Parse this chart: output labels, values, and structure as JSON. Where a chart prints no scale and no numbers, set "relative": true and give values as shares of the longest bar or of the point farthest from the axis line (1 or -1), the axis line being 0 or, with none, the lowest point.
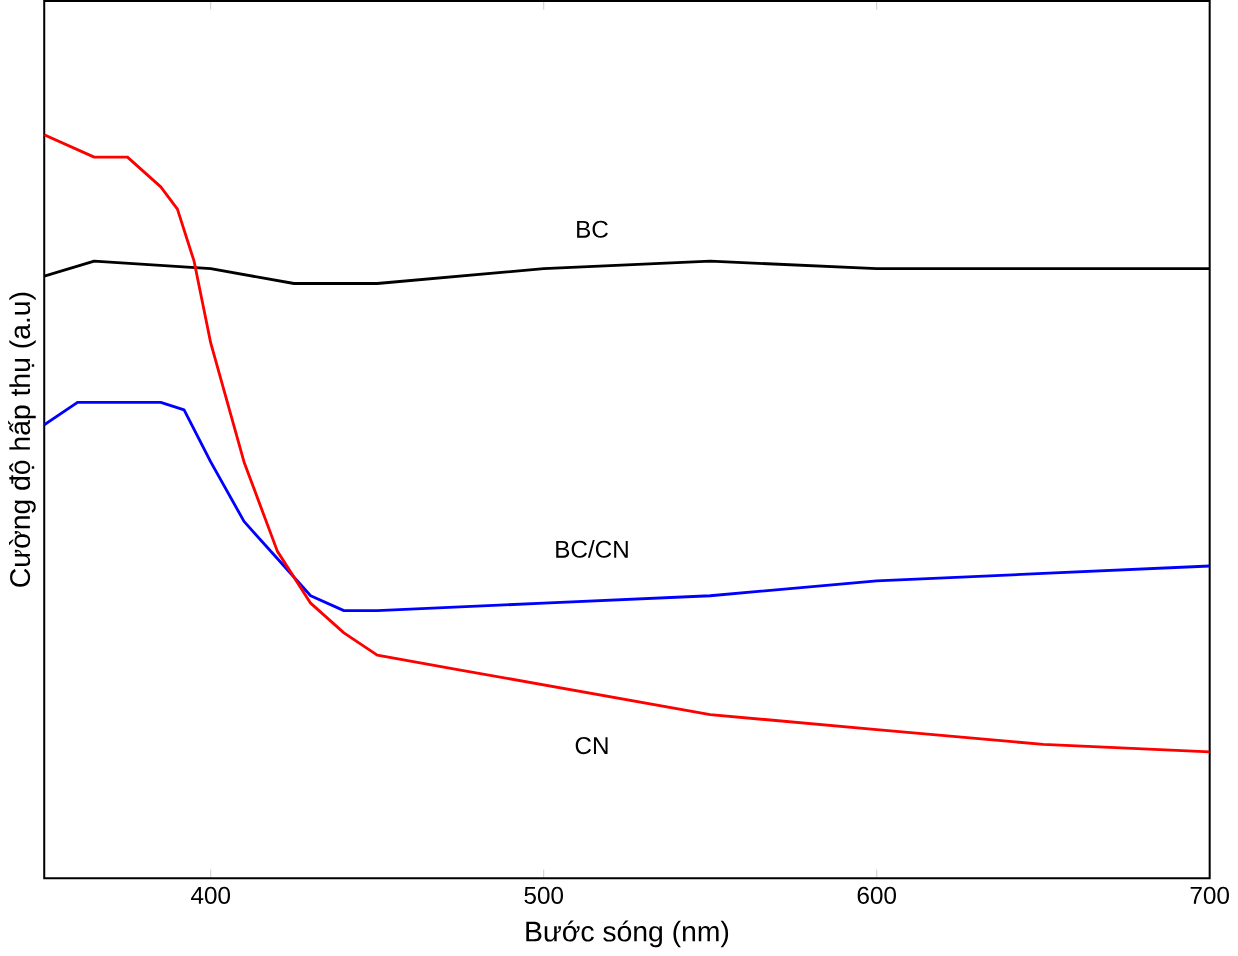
{
  "chart_data": {
    "type": "line",
    "xlabel": "Bước sóng (nm)",
    "ylabel": "Cường độ hấp thụ (a.u)",
    "relative": true,
    "tick_labels": "x",
    "xlim": [
      350,
      700
    ],
    "xticks": [
      400,
      500,
      600,
      700
    ],
    "series": [
      {
        "name": "BC",
        "color": "#000000",
        "x": [
          350,
          365,
          400,
          425,
          450,
          500,
          550,
          600,
          700
        ],
        "values": [
          0.81,
          0.83,
          0.82,
          0.8,
          0.8,
          0.82,
          0.83,
          0.82,
          0.82
        ]
      },
      {
        "name": "BC/CN",
        "color": "#0000ff",
        "x": [
          350,
          360,
          370,
          385,
          392,
          400,
          410,
          420,
          430,
          440,
          450,
          500,
          550,
          600,
          650,
          700
        ],
        "values": [
          0.61,
          0.64,
          0.64,
          0.64,
          0.63,
          0.56,
          0.48,
          0.43,
          0.38,
          0.36,
          0.36,
          0.37,
          0.38,
          0.4,
          0.41,
          0.42
        ]
      },
      {
        "name": "CN",
        "color": "#ff0000",
        "x": [
          350,
          365,
          375,
          385,
          390,
          395,
          400,
          410,
          420,
          430,
          440,
          450,
          475,
          500,
          550,
          600,
          650,
          700
        ],
        "values": [
          1.0,
          0.97,
          0.97,
          0.93,
          0.9,
          0.83,
          0.72,
          0.56,
          0.44,
          0.37,
          0.33,
          0.3,
          0.28,
          0.26,
          0.22,
          0.2,
          0.18,
          0.17
        ]
      }
    ]
  }
}
